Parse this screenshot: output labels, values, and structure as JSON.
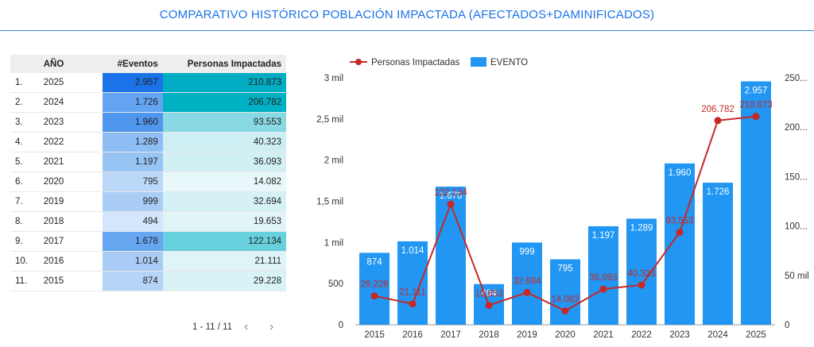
{
  "header": {
    "title": "COMPARATIVO HISTÓRICO POBLACIÓN IMPACTADA (AFECTADOS+DAMINIFICADOS)"
  },
  "table": {
    "headers": {
      "idx": "",
      "year": "AÑO",
      "events": "#Eventos",
      "people": "Personas Impactadas"
    },
    "rows": [
      {
        "idx": "1.",
        "year": "2025",
        "events": "2.957",
        "people": "210.873",
        "events_bg": "#1a73e8",
        "people_bg": "#00acc1"
      },
      {
        "idx": "2.",
        "year": "2024",
        "events": "1.726",
        "people": "206.782",
        "events_bg": "#63a4f1",
        "people_bg": "#00b1c3"
      },
      {
        "idx": "3.",
        "year": "2023",
        "events": "1.960",
        "people": "93.553",
        "events_bg": "#4f97ee",
        "people_bg": "#88d9e3"
      },
      {
        "idx": "4.",
        "year": "2022",
        "events": "1.289",
        "people": "40.323",
        "events_bg": "#8fbef4",
        "people_bg": "#cdeff3"
      },
      {
        "idx": "5.",
        "year": "2021",
        "events": "1.197",
        "people": "36.093",
        "events_bg": "#98c3f5",
        "people_bg": "#d1f0f4"
      },
      {
        "idx": "6.",
        "year": "2020",
        "events": "795",
        "people": "14.082",
        "events_bg": "#bcd8f8",
        "people_bg": "#e8f8fa"
      },
      {
        "idx": "7.",
        "year": "2019",
        "events": "999",
        "people": "32.694",
        "events_bg": "#aacdf6",
        "people_bg": "#d5f1f5"
      },
      {
        "idx": "8.",
        "year": "2018",
        "events": "494",
        "people": "19.653",
        "events_bg": "#d4e6fb",
        "people_bg": "#e1f5f8"
      },
      {
        "idx": "9.",
        "year": "2017",
        "events": "1.678",
        "people": "122.134",
        "events_bg": "#67a6f1",
        "people_bg": "#66d0dc"
      },
      {
        "idx": "10.",
        "year": "2016",
        "events": "1.014",
        "people": "21.111",
        "events_bg": "#a8ccf6",
        "people_bg": "#def4f7"
      },
      {
        "idx": "11.",
        "year": "2015",
        "events": "874",
        "people": "29.228",
        "events_bg": "#b5d4f7",
        "people_bg": "#d8f2f6"
      }
    ]
  },
  "pager": {
    "label": "1 - 11 / 11",
    "prev": "‹",
    "next": "›"
  },
  "chart_data": {
    "type": "bar",
    "categories": [
      "2015",
      "2016",
      "2017",
      "2018",
      "2019",
      "2020",
      "2021",
      "2022",
      "2023",
      "2024",
      "2025"
    ],
    "series": [
      {
        "name": "EVENTO",
        "type": "bar",
        "axis": "left",
        "color": "#2196f3",
        "values": [
          874,
          1014,
          1678,
          494,
          999,
          795,
          1197,
          1289,
          1960,
          1726,
          2957
        ],
        "labels": [
          "874",
          "1.014",
          "1.678",
          "494",
          "999",
          "795",
          "1.197",
          "1.289",
          "1.960",
          "1.726",
          "2.957"
        ]
      },
      {
        "name": "Personas Impactadas",
        "type": "line",
        "axis": "right",
        "color": "#c62828",
        "values": [
          29228,
          21111,
          122134,
          19653,
          32694,
          14082,
          36093,
          40323,
          93553,
          206782,
          210873
        ],
        "labels": [
          "29.228",
          "21.111",
          "122.134",
          "19.653",
          "32.694",
          "14.082",
          "36.093",
          "40.323",
          "93.553",
          "206.782",
          "210.873"
        ]
      }
    ],
    "y_left": {
      "range": [
        0,
        3000
      ],
      "ticks": [
        0,
        500,
        1000,
        1500,
        2000,
        2500,
        3000
      ],
      "tick_labels": [
        "0",
        "500",
        "1 mil",
        "1,5 mil",
        "2 mil",
        "2,5 mil",
        "3 mil"
      ]
    },
    "y_right": {
      "range": [
        0,
        250000
      ],
      "ticks": [
        0,
        50000,
        100000,
        150000,
        200000,
        250000
      ],
      "tick_labels": [
        "0",
        "50 mil",
        "100...",
        "150...",
        "200...",
        "250..."
      ]
    },
    "legend_position": "top-left",
    "grid": false
  }
}
